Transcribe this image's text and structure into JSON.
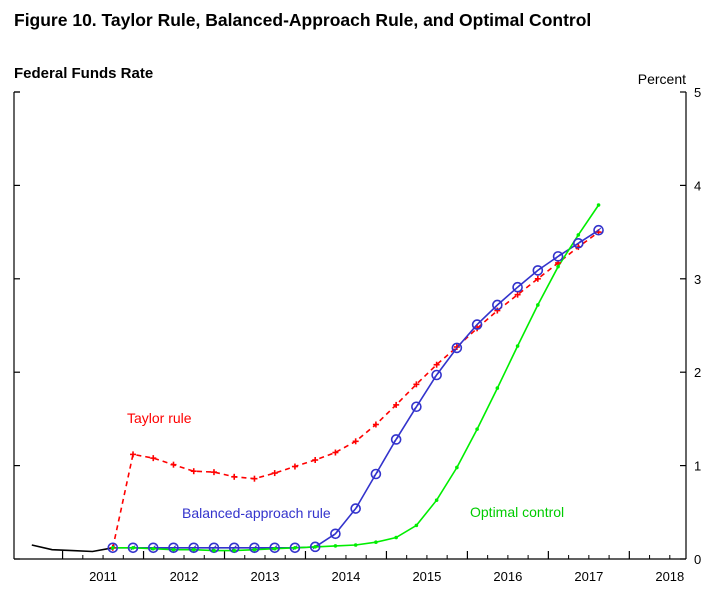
{
  "figure_title": "Figure 10.  Taylor Rule, Balanced-Approach Rule, and Optimal Control",
  "chart_data": {
    "type": "line",
    "title": "Federal Funds Rate",
    "ylabel": "Percent",
    "xlim": [
      2010.4,
      2018.7
    ],
    "ylim": [
      0,
      5
    ],
    "yticks": [
      "0",
      "1",
      "2",
      "3",
      "4",
      "5"
    ],
    "xtick_labels": [
      "2011",
      "2012",
      "2013",
      "2014",
      "2015",
      "2016",
      "2017",
      "2018"
    ],
    "grid": false,
    "annotations": [
      {
        "text": "Taylor rule",
        "color": "#ff0000",
        "series": "taylor"
      },
      {
        "text": "Balanced-approach rule",
        "color": "#3333cc",
        "series": "balanced"
      },
      {
        "text": "Optimal control",
        "color": "#00cc00",
        "series": "optimal"
      }
    ],
    "series": [
      {
        "id": "history",
        "color": "#000000",
        "marker": "none",
        "dash": "solid",
        "x": [
          2010.62,
          2010.87,
          2011.12,
          2011.37,
          2011.62
        ],
        "y": [
          0.15,
          0.1,
          0.09,
          0.08,
          0.12
        ]
      },
      {
        "id": "taylor",
        "color": "#ff0000",
        "marker": "plus",
        "dash": "dashed",
        "x": [
          2011.62,
          2011.87,
          2012.12,
          2012.37,
          2012.62,
          2012.87,
          2013.12,
          2013.37,
          2013.62,
          2013.87,
          2014.12,
          2014.37,
          2014.62,
          2014.87,
          2015.12,
          2015.37,
          2015.62,
          2015.87,
          2016.12,
          2016.37,
          2016.62,
          2016.87,
          2017.12,
          2017.37,
          2017.62
        ],
        "y": [
          0.12,
          1.12,
          1.08,
          1.01,
          0.94,
          0.93,
          0.88,
          0.86,
          0.92,
          0.99,
          1.06,
          1.14,
          1.26,
          1.44,
          1.65,
          1.87,
          2.08,
          2.27,
          2.47,
          2.66,
          2.83,
          3.0,
          3.17,
          3.34,
          3.5
        ]
      },
      {
        "id": "balanced",
        "color": "#3333cc",
        "marker": "circle",
        "dash": "solid",
        "x": [
          2011.62,
          2011.87,
          2012.12,
          2012.37,
          2012.62,
          2012.87,
          2013.12,
          2013.37,
          2013.62,
          2013.87,
          2014.12,
          2014.37,
          2014.62,
          2014.87,
          2015.12,
          2015.37,
          2015.62,
          2015.87,
          2016.12,
          2016.37,
          2016.62,
          2016.87,
          2017.12,
          2017.37,
          2017.62
        ],
        "y": [
          0.12,
          0.12,
          0.12,
          0.12,
          0.12,
          0.12,
          0.12,
          0.12,
          0.12,
          0.12,
          0.13,
          0.27,
          0.54,
          0.91,
          1.28,
          1.63,
          1.97,
          2.26,
          2.51,
          2.72,
          2.91,
          3.09,
          3.24,
          3.38,
          3.52
        ]
      },
      {
        "id": "optimal",
        "color": "#00ee00",
        "marker": "dot",
        "dash": "solid",
        "x": [
          2011.62,
          2011.87,
          2012.12,
          2012.37,
          2012.62,
          2012.87,
          2013.12,
          2013.37,
          2013.62,
          2013.87,
          2014.12,
          2014.37,
          2014.62,
          2014.87,
          2015.12,
          2015.37,
          2015.62,
          2015.87,
          2016.12,
          2016.37,
          2016.62,
          2016.87,
          2017.12,
          2017.37,
          2017.62
        ],
        "y": [
          0.12,
          0.12,
          0.11,
          0.1,
          0.1,
          0.09,
          0.09,
          0.1,
          0.11,
          0.12,
          0.13,
          0.14,
          0.15,
          0.18,
          0.23,
          0.36,
          0.63,
          0.98,
          1.39,
          1.83,
          2.28,
          2.72,
          3.13,
          3.47,
          3.79
        ]
      }
    ]
  }
}
